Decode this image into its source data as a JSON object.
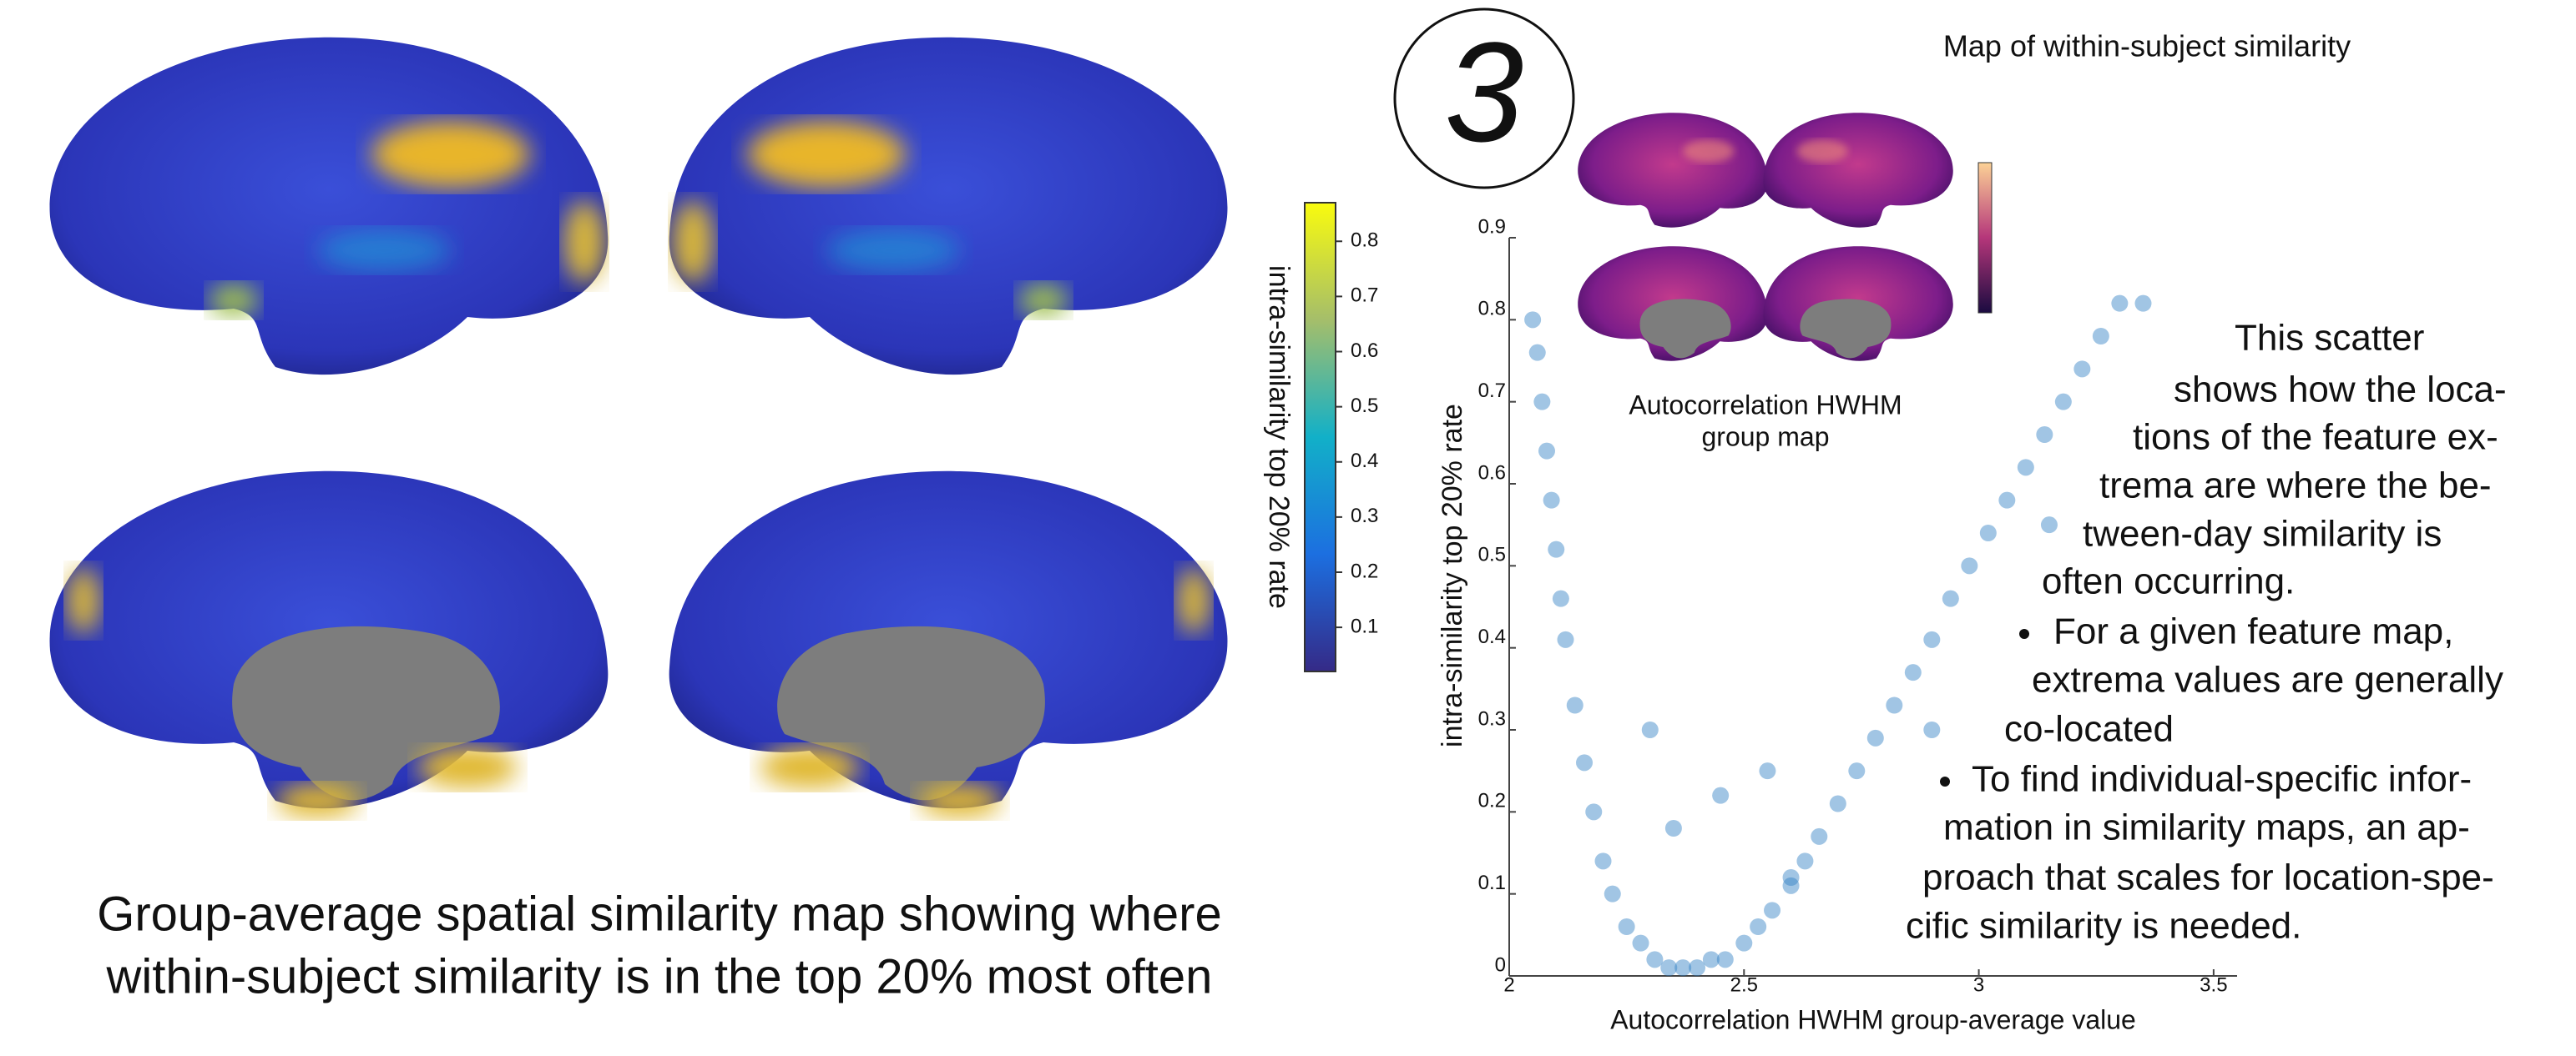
{
  "colorbar": {
    "label": "intra-similarity top 20% rate",
    "lim": [
      0.02,
      0.87
    ],
    "ticks": [
      0.1,
      0.2,
      0.3,
      0.4,
      0.5,
      0.6,
      0.7,
      0.8
    ]
  },
  "caption": [
    "Group-average spatial similarity map showing where",
    "within-subject similarity is in the top 20% most often"
  ],
  "badge": "3",
  "inset": {
    "title": "Map of within-subject similarity",
    "caption": [
      "Autocorrelation HWHM",
      "group map"
    ]
  },
  "chart_data": {
    "type": "scatter",
    "xlabel": "Autocorrelation HWHM group-average value",
    "ylabel": "intra-similarity top 20% rate",
    "xlim": [
      2,
      3.55
    ],
    "ylim": [
      0,
      0.9
    ],
    "xticks": [
      2,
      2.5,
      3,
      3.5
    ],
    "yticks": [
      0,
      0.1,
      0.2,
      0.3,
      0.4,
      0.5,
      0.6,
      0.7,
      0.8,
      0.9
    ],
    "series": [
      {
        "color": "#2f7fc4",
        "x": [
          2.05,
          2.06,
          2.07,
          2.08,
          2.09,
          2.1,
          2.11,
          2.12,
          2.14,
          2.16,
          2.18,
          2.2,
          2.22,
          2.25,
          2.28,
          2.31,
          2.34,
          2.37,
          2.4,
          2.43,
          2.46,
          2.5,
          2.53,
          2.56,
          2.6,
          2.63,
          2.66,
          2.7,
          2.74,
          2.78,
          2.82,
          2.86,
          2.9,
          2.94,
          2.98,
          3.02,
          3.06,
          3.1,
          3.14,
          3.18,
          3.22,
          3.26,
          3.3,
          2.35,
          2.45,
          2.55,
          2.3,
          2.6,
          2.9,
          3.15,
          3.35
        ],
        "y": [
          0.8,
          0.76,
          0.7,
          0.64,
          0.58,
          0.52,
          0.46,
          0.41,
          0.33,
          0.26,
          0.2,
          0.14,
          0.1,
          0.06,
          0.04,
          0.02,
          0.01,
          0.01,
          0.01,
          0.02,
          0.02,
          0.04,
          0.06,
          0.08,
          0.11,
          0.14,
          0.17,
          0.21,
          0.25,
          0.29,
          0.33,
          0.37,
          0.41,
          0.46,
          0.5,
          0.54,
          0.58,
          0.62,
          0.66,
          0.7,
          0.74,
          0.78,
          0.82,
          0.18,
          0.22,
          0.25,
          0.3,
          0.12,
          0.3,
          0.55,
          0.82
        ]
      }
    ]
  },
  "notes": {
    "intro": [
      "This scatter",
      "shows how the loca-",
      "tions of the feature ex-",
      "trema are where the be-",
      "tween-day similarity is",
      "often occurring."
    ],
    "bullets": [
      [
        "For a given feature map,",
        "extrema values are generally",
        "co-located"
      ],
      [
        "To find individual-specific infor-",
        "mation in similarity maps, an ap-",
        "proach that scales for location-spe-",
        "cific similarity is needed."
      ]
    ]
  }
}
